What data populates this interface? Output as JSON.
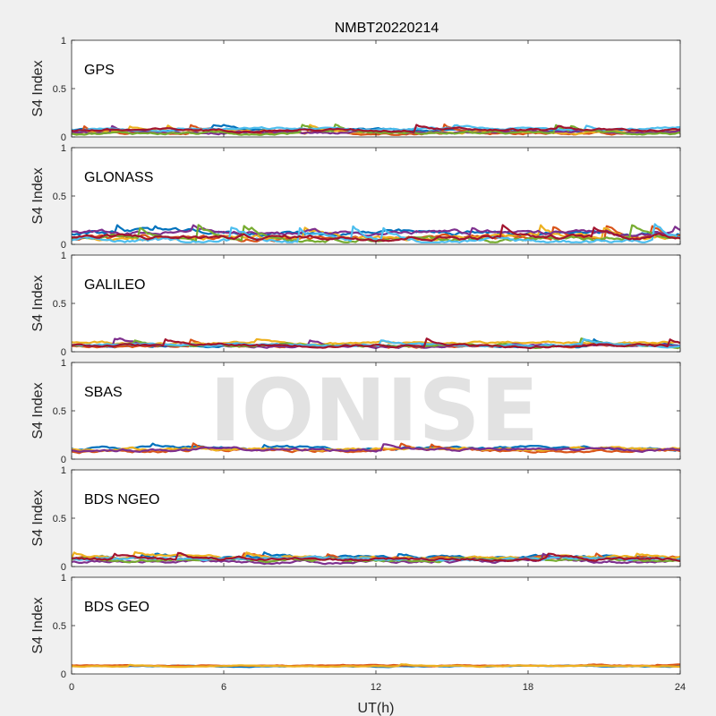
{
  "chart_data": {
    "type": "line",
    "title": "NMBT20220214",
    "xlabel": "UT(h)",
    "xlim": [
      0,
      24
    ],
    "xticks": [
      "0",
      "6",
      "12",
      "18",
      "24"
    ],
    "xtick_values": [
      0,
      6,
      12,
      18,
      24
    ],
    "watermark": "IONISE",
    "colors": [
      "#0072BD",
      "#D95319",
      "#EDB120",
      "#7E2F8E",
      "#77AC30",
      "#4DBEEE",
      "#A2142F"
    ],
    "panels": [
      {
        "name": "GPS",
        "ylabel": "S4 Index",
        "ylim": [
          0,
          1
        ],
        "yticks": [
          "0",
          "0.5",
          "1"
        ],
        "ytick_values": [
          0,
          0.5,
          1
        ],
        "grid": false,
        "series_count": 7,
        "baseline_s4": 0.05,
        "s4_range": [
          0.02,
          0.13
        ]
      },
      {
        "name": "GLONASS",
        "ylabel": "S4 Index",
        "ylim": [
          0,
          1
        ],
        "yticks": [
          "0",
          "0.5",
          "1"
        ],
        "ytick_values": [
          0,
          0.5,
          1
        ],
        "grid": false,
        "series_count": 7,
        "baseline_s4": 0.06,
        "s4_range": [
          0.02,
          0.21
        ]
      },
      {
        "name": "GALILEO",
        "ylabel": "S4 Index",
        "ylim": [
          0,
          1
        ],
        "yticks": [
          "0",
          "0.5",
          "1"
        ],
        "ytick_values": [
          0,
          0.5,
          1
        ],
        "grid": false,
        "series_count": 7,
        "baseline_s4": 0.06,
        "s4_range": [
          0.03,
          0.14
        ]
      },
      {
        "name": "SBAS",
        "ylabel": "S4 Index",
        "ylim": [
          0,
          1
        ],
        "yticks": [
          "0",
          "0.5",
          "1"
        ],
        "ytick_values": [
          0,
          0.5,
          1
        ],
        "grid": false,
        "series_count": 4,
        "baseline_s4": 0.09,
        "s4_range": [
          0.05,
          0.17
        ]
      },
      {
        "name": "BDS NGEO",
        "ylabel": "S4 Index",
        "ylim": [
          0,
          1
        ],
        "yticks": [
          "0",
          "0.5",
          "1"
        ],
        "ytick_values": [
          0,
          0.5,
          1
        ],
        "grid": false,
        "series_count": 7,
        "baseline_s4": 0.06,
        "s4_range": [
          0.02,
          0.15
        ]
      },
      {
        "name": "BDS GEO",
        "ylabel": "S4 Index",
        "ylim": [
          0,
          1
        ],
        "yticks": [
          "0",
          "0.5",
          "1"
        ],
        "ytick_values": [
          0,
          0.5,
          1
        ],
        "grid": false,
        "series_count": 3,
        "baseline_s4": 0.08,
        "s4_range": [
          0.06,
          0.1
        ]
      }
    ]
  }
}
